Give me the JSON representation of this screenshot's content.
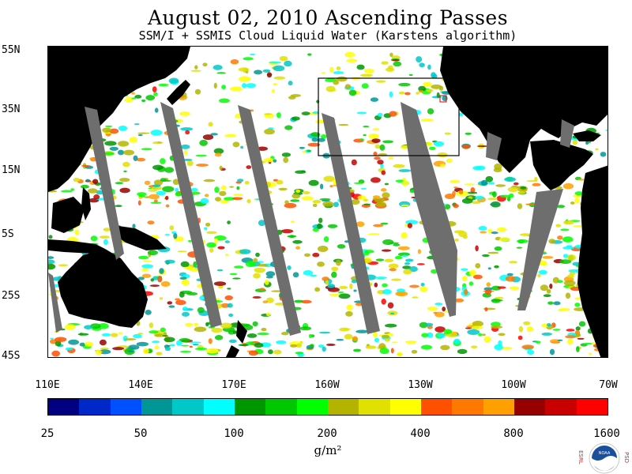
{
  "header": {
    "title": "August 02, 2010  Ascending Passes",
    "subtitle": "SSM/I + SSMIS Cloud Liquid Water (Karstens algorithm)"
  },
  "map": {
    "lat_labels": [
      "55N",
      "35N",
      "15N",
      "5S",
      "25S",
      "45S"
    ],
    "lon_labels": [
      "110E",
      "140E",
      "170E",
      "160W",
      "130W",
      "100W",
      "70W"
    ],
    "land_color": "#000000",
    "gap_color": "#6e6e6e",
    "no_data_color": "#ffffff"
  },
  "colorbar": {
    "colors": [
      "#000080",
      "#0028c8",
      "#0050ff",
      "#009696",
      "#00c8c8",
      "#00ffff",
      "#009600",
      "#00c800",
      "#00ff00",
      "#b4b400",
      "#e1e100",
      "#ffff00",
      "#ff5000",
      "#ff7800",
      "#ffa000",
      "#960000",
      "#c80000",
      "#ff0000"
    ],
    "tick_labels": [
      "25",
      "50",
      "100",
      "200",
      "400",
      "800",
      "1600"
    ],
    "units": "g/m²"
  },
  "logo": {
    "left_letters": "ESRL",
    "right_letters": "PSD",
    "center": "NOAA"
  }
}
